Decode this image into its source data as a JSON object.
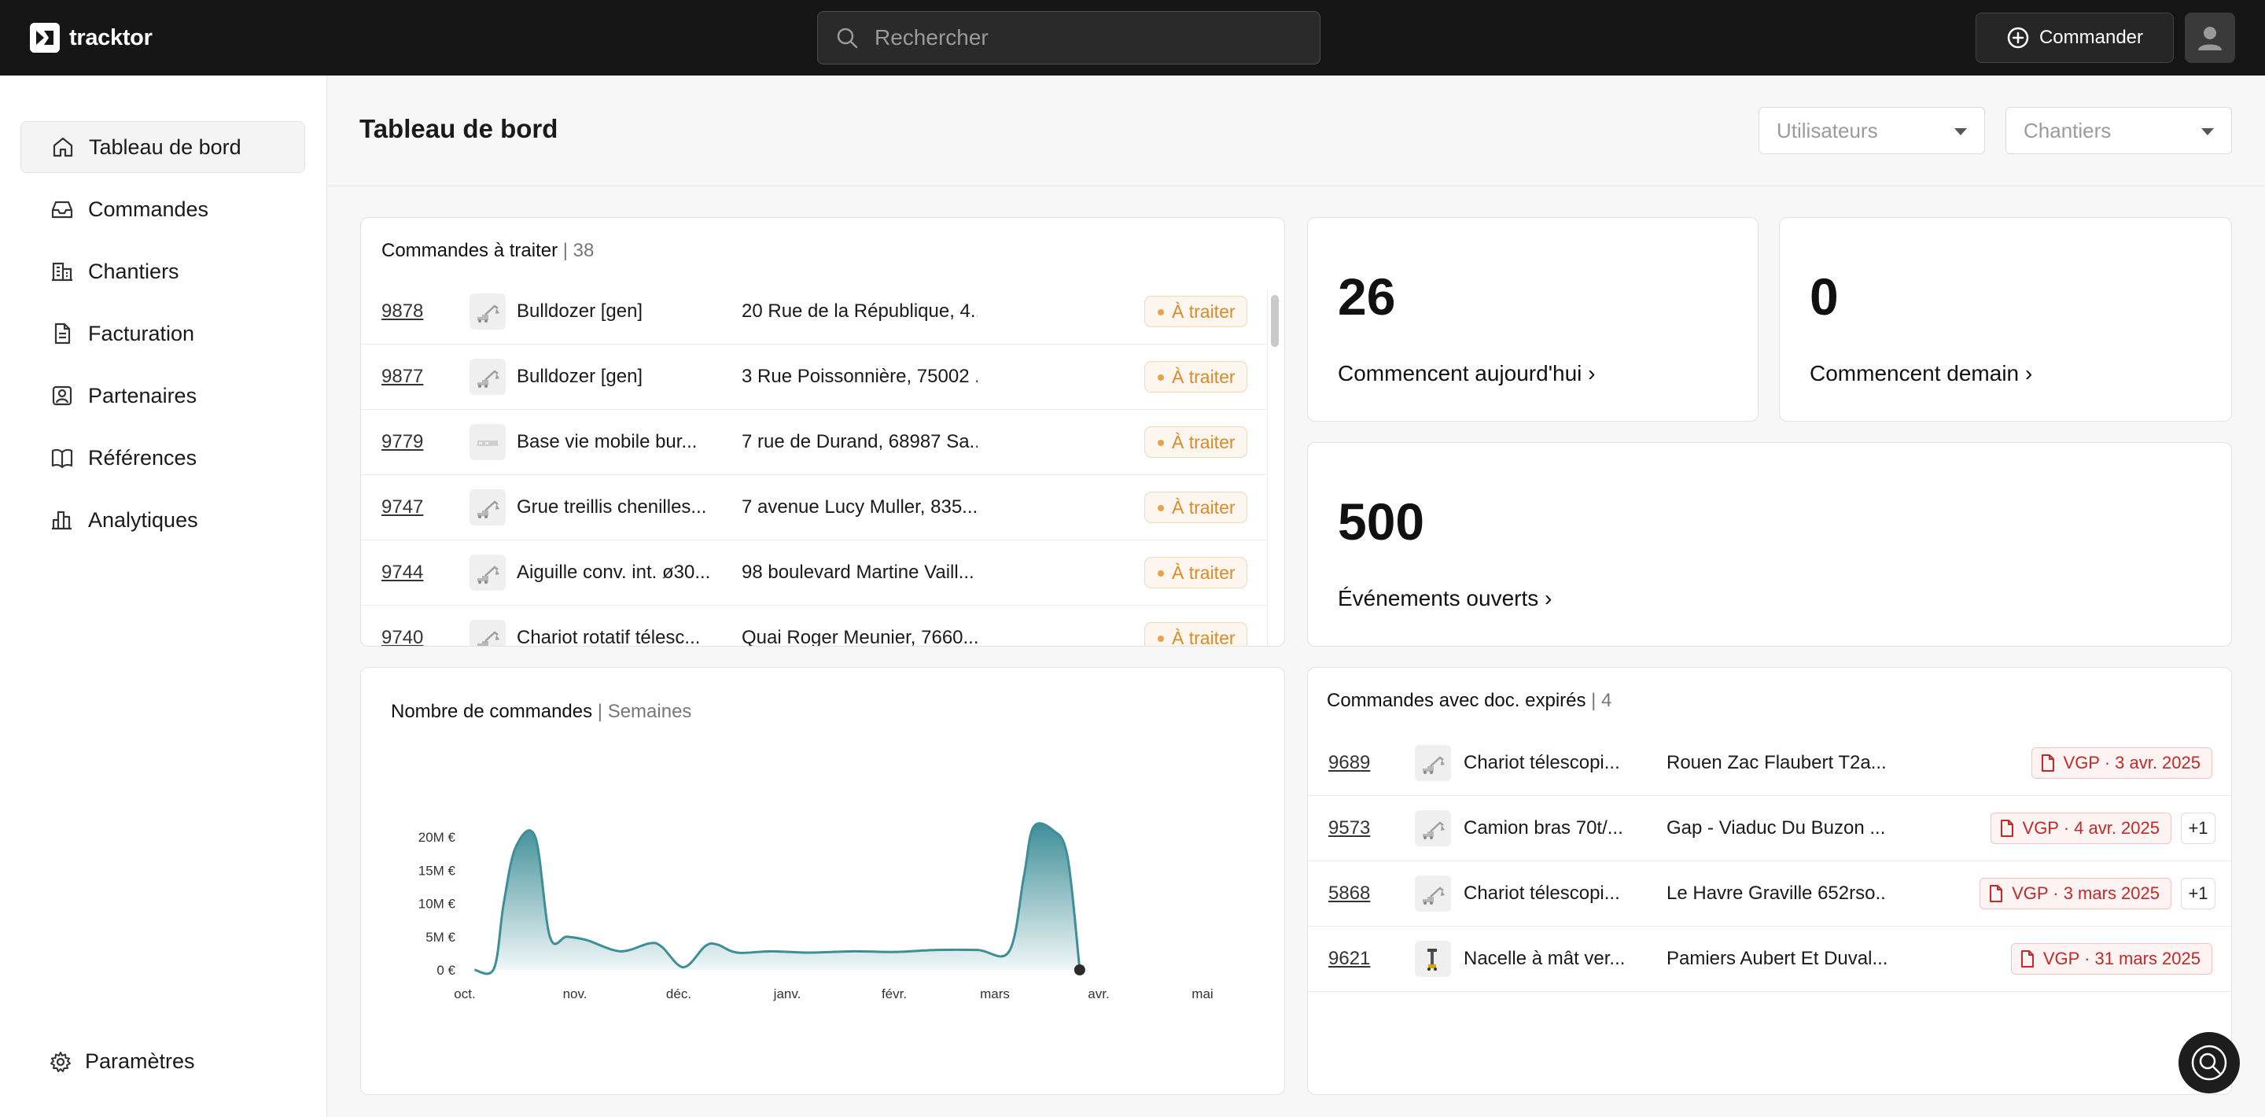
{
  "app": {
    "name": "tracktor"
  },
  "header": {
    "search_placeholder": "Rechercher",
    "order_label": "Commander"
  },
  "sidebar": {
    "items": [
      {
        "label": "Tableau de bord",
        "icon": "home-icon"
      },
      {
        "label": "Commandes",
        "icon": "inbox-icon"
      },
      {
        "label": "Chantiers",
        "icon": "building-icon"
      },
      {
        "label": "Facturation",
        "icon": "document-icon"
      },
      {
        "label": "Partenaires",
        "icon": "contact-icon"
      },
      {
        "label": "Références",
        "icon": "book-icon"
      },
      {
        "label": "Analytiques",
        "icon": "bar-chart-icon"
      }
    ],
    "settings_label": "Paramètres"
  },
  "page": {
    "title": "Tableau de bord",
    "filters": [
      {
        "placeholder": "Utilisateurs"
      },
      {
        "placeholder": "Chantiers"
      }
    ]
  },
  "orders_to_process": {
    "title": "Commandes à traiter",
    "count": "| 38",
    "rows": [
      {
        "id": "9878",
        "equipment": "Bulldozer [gen]",
        "address": "20 Rue de la République, 4...",
        "status": "À traiter"
      },
      {
        "id": "9877",
        "equipment": "Bulldozer [gen]",
        "address": "3 Rue Poissonnière, 75002 ...",
        "status": "À traiter"
      },
      {
        "id": "9779",
        "equipment": "Base vie mobile bur...",
        "address": "7 rue de Durand, 68987 Sa...",
        "status": "À traiter"
      },
      {
        "id": "9747",
        "equipment": "Grue treillis chenilles...",
        "address": "7 avenue Lucy Muller, 835...",
        "status": "À traiter"
      },
      {
        "id": "9744",
        "equipment": "Aiguille conv. int. ø30...",
        "address": "98 boulevard Martine Vaill...",
        "status": "À traiter"
      },
      {
        "id": "9740",
        "equipment": "Chariot rotatif télesc...",
        "address": "Quai Roger Meunier, 7660...",
        "status": "À traiter"
      }
    ]
  },
  "stats": {
    "today": {
      "value": "26",
      "label": "Commencent aujourd'hui ›"
    },
    "tomorrow": {
      "value": "0",
      "label": "Commencent demain ›"
    },
    "events": {
      "value": "500",
      "label": "Événements ouverts ›"
    }
  },
  "chart_data": {
    "type": "area",
    "title": "Nombre de commandes",
    "subtitle": "| Semaines",
    "x_ticks": [
      "oct.",
      "nov.",
      "déc.",
      "janv.",
      "févr.",
      "mars",
      "avr.",
      "mai"
    ],
    "y_ticks": [
      "0 €",
      "5M €",
      "10M €",
      "15M €",
      "20M €"
    ],
    "ylim": [
      0,
      22
    ],
    "x_range": [
      0,
      31
    ],
    "points": [
      [
        0.4,
        0
      ],
      [
        1.2,
        0.2
      ],
      [
        1.6,
        10
      ],
      [
        2.1,
        18.5
      ],
      [
        2.9,
        20
      ],
      [
        3.5,
        5
      ],
      [
        4.2,
        5
      ],
      [
        5,
        4.5
      ],
      [
        6.4,
        2.8
      ],
      [
        7.6,
        4
      ],
      [
        8.1,
        3.5
      ],
      [
        9,
        0.4
      ],
      [
        9.9,
        3.6
      ],
      [
        10.4,
        3.8
      ],
      [
        11.2,
        2.6
      ],
      [
        12.6,
        2.8
      ],
      [
        14.2,
        2.6
      ],
      [
        16,
        2.8
      ],
      [
        17.7,
        2.7
      ],
      [
        19.4,
        3
      ],
      [
        21.1,
        3
      ],
      [
        22.4,
        2.8
      ],
      [
        23,
        14
      ],
      [
        23.4,
        21.5
      ],
      [
        24.2,
        21
      ],
      [
        24.8,
        17
      ],
      [
        25.3,
        0
      ]
    ],
    "ylabel": "",
    "xlabel": "",
    "grid": false,
    "color": "#3e8e98"
  },
  "expired_docs": {
    "title": "Commandes avec doc. expirés",
    "count": "| 4",
    "rows": [
      {
        "id": "9689",
        "equipment": "Chariot télescopi...",
        "address": "Rouen Zac Flaubert T2a...",
        "doc": "VGP · 3 avr. 2025",
        "extra": ""
      },
      {
        "id": "9573",
        "equipment": "Camion bras 70t/...",
        "address": "Gap - Viaduc Du Buzon ...",
        "doc": "VGP · 4 avr. 2025",
        "extra": "+1"
      },
      {
        "id": "5868",
        "equipment": "Chariot télescopi...",
        "address": "Le Havre Graville 652rso...",
        "doc": "VGP · 3 mars 2025",
        "extra": "+1"
      },
      {
        "id": "9621",
        "equipment": "Nacelle à mât ver...",
        "address": "Pamiers Aubert Et Duval...",
        "doc": "VGP · 31 mars 2025",
        "extra": ""
      }
    ]
  },
  "colors": {
    "topbar": "#161616",
    "badge_orange": "#d98a2b",
    "doc_red": "#c62828",
    "chart_teal": "#3e8e98"
  }
}
